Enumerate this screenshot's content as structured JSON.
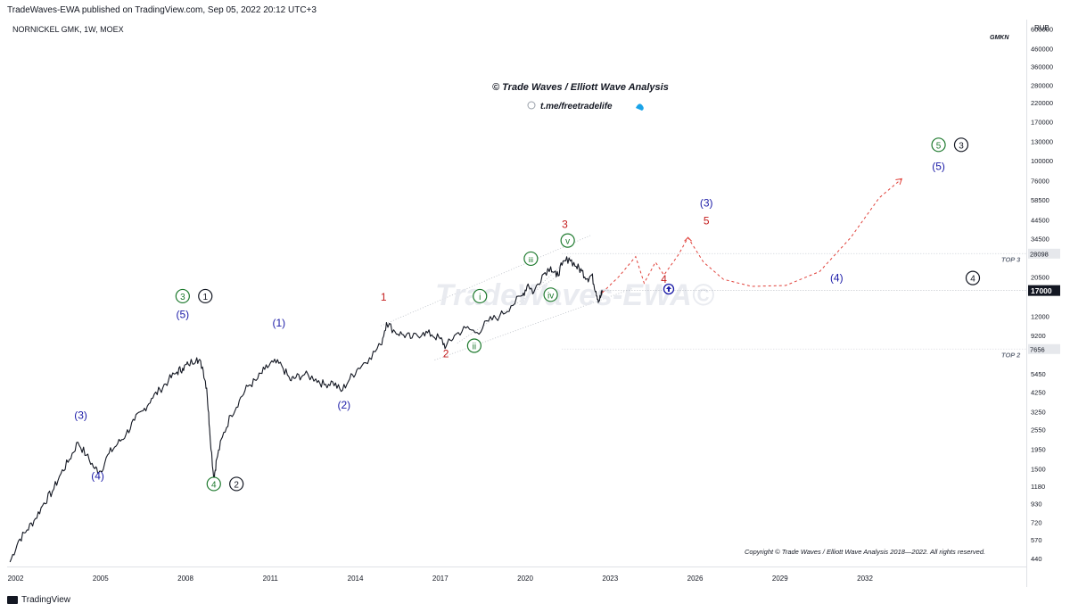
{
  "header": {
    "published_line": "TradeWaves-EWA published on TradingView.com, Sep 05, 2022 20:12 UTC+3",
    "symbol_line": "NORNICKEL GMK, 1W, MOEX",
    "currency": "RUB",
    "ticker_tag": "GMKN"
  },
  "branding": {
    "title": "© Trade Waves / Elliott Wave Analysis",
    "telegram": "t.me/freetradelife",
    "watermark": "TradeWaves-EWA©",
    "copyright": "Copyright © Trade Waves / Elliott Wave Analysis 2018—2022. All rights reserved.",
    "footer_logo": "TradingView"
  },
  "colors": {
    "price": "#131722",
    "wave_blue": "#1c1ca8",
    "wave_red": "#c41c1c",
    "wave_green": "#1e7a2e",
    "wave_black": "#131722",
    "channel": "#b8bcc4",
    "projection": "#e0413a"
  },
  "chart_data": {
    "type": "line",
    "scale": "log",
    "title": "NORNICKEL GMK, 1W, MOEX",
    "ylabel": "RUB",
    "xlabel": "",
    "x_ticks": [
      "2002",
      "2005",
      "2008",
      "2011",
      "2014",
      "2017",
      "2020",
      "2023",
      "2026",
      "2029",
      "2032"
    ],
    "y_ticks": [
      "600000",
      "460000",
      "360000",
      "280000",
      "220000",
      "170000",
      "130000",
      "100000",
      "76000",
      "58500",
      "44500",
      "34500",
      "28098",
      "20500",
      "17000",
      "12000",
      "9200",
      "7656",
      "5450",
      "4250",
      "3250",
      "2550",
      "1950",
      "1500",
      "1180",
      "930",
      "720",
      "570",
      "440"
    ],
    "ylim": [
      400,
      650000
    ],
    "xlim": [
      2001.7,
      2037.7
    ],
    "current_price": 17000,
    "levels": [
      {
        "name": "TOP 3",
        "value": 28098
      },
      {
        "name": "TOP 2",
        "value": 7656
      }
    ],
    "series": [
      {
        "name": "",
        "points": [
          [
            2001.8,
            420
          ],
          [
            2002.1,
            560
          ],
          [
            2002.4,
            650
          ],
          [
            2002.7,
            760
          ],
          [
            2003.0,
            940
          ],
          [
            2003.3,
            1100
          ],
          [
            2003.6,
            1400
          ],
          [
            2003.9,
            1700
          ],
          [
            2004.2,
            2150
          ],
          [
            2004.5,
            1800
          ],
          [
            2004.8,
            1500
          ],
          [
            2005.0,
            1450
          ],
          [
            2005.3,
            1850
          ],
          [
            2005.6,
            2100
          ],
          [
            2005.9,
            2400
          ],
          [
            2006.2,
            2900
          ],
          [
            2006.5,
            3300
          ],
          [
            2006.8,
            3900
          ],
          [
            2007.1,
            4400
          ],
          [
            2007.4,
            5000
          ],
          [
            2007.7,
            5600
          ],
          [
            2007.9,
            5900
          ],
          [
            2008.1,
            6200
          ],
          [
            2008.4,
            6800
          ],
          [
            2008.6,
            6000
          ],
          [
            2008.75,
            4500
          ],
          [
            2008.85,
            2600
          ],
          [
            2009.0,
            1300
          ],
          [
            2009.1,
            1700
          ],
          [
            2009.3,
            2300
          ],
          [
            2009.6,
            3100
          ],
          [
            2009.9,
            3800
          ],
          [
            2010.2,
            4600
          ],
          [
            2010.5,
            5000
          ],
          [
            2010.8,
            5800
          ],
          [
            2011.1,
            6400
          ],
          [
            2011.4,
            6100
          ],
          [
            2011.7,
            5000
          ],
          [
            2011.9,
            5200
          ],
          [
            2012.2,
            5400
          ],
          [
            2012.6,
            5100
          ],
          [
            2012.9,
            4700
          ],
          [
            2013.2,
            4900
          ],
          [
            2013.5,
            4300
          ],
          [
            2013.8,
            5100
          ],
          [
            2014.1,
            5900
          ],
          [
            2014.5,
            6800
          ],
          [
            2014.9,
            8100
          ],
          [
            2015.1,
            11000
          ],
          [
            2015.4,
            9700
          ],
          [
            2015.7,
            9300
          ],
          [
            2016.0,
            8900
          ],
          [
            2016.4,
            9600
          ],
          [
            2016.7,
            9300
          ],
          [
            2017.0,
            8800
          ],
          [
            2017.2,
            7900
          ],
          [
            2017.5,
            9200
          ],
          [
            2017.9,
            10200
          ],
          [
            2018.3,
            9600
          ],
          [
            2018.7,
            11200
          ],
          [
            2019.1,
            12000
          ],
          [
            2019.5,
            13800
          ],
          [
            2019.9,
            15900
          ],
          [
            2020.1,
            18600
          ],
          [
            2020.3,
            16500
          ],
          [
            2020.6,
            21000
          ],
          [
            2020.9,
            23500
          ],
          [
            2021.1,
            20500
          ],
          [
            2021.3,
            24000
          ],
          [
            2021.55,
            26500
          ],
          [
            2021.8,
            23600
          ],
          [
            2022.0,
            22200
          ],
          [
            2022.2,
            20000
          ],
          [
            2022.35,
            21000
          ],
          [
            2022.5,
            16800
          ],
          [
            2022.6,
            14800
          ],
          [
            2022.68,
            15800
          ],
          [
            2022.72,
            17000
          ]
        ]
      },
      {
        "name": "",
        "style": "projection",
        "points": [
          [
            2022.72,
            16500
          ],
          [
            2023.3,
            20500
          ],
          [
            2023.9,
            27000
          ],
          [
            2024.2,
            18800
          ],
          [
            2024.6,
            25000
          ],
          [
            2024.9,
            21000
          ],
          [
            2025.4,
            27500
          ],
          [
            2025.75,
            35000
          ],
          [
            2026.3,
            25000
          ],
          [
            2027.0,
            19800
          ],
          [
            2028.0,
            18000
          ],
          [
            2029.2,
            18200
          ],
          [
            2030.4,
            22000
          ],
          [
            2031.5,
            35000
          ],
          [
            2032.5,
            60000
          ],
          [
            2033.3,
            78000
          ]
        ]
      }
    ],
    "wave_labels": [
      {
        "text": "(3)",
        "x": 2004.3,
        "y": 2950,
        "color": "blue"
      },
      {
        "text": "(4)",
        "x": 2004.9,
        "y": 1290,
        "color": "blue"
      },
      {
        "text": "(5)",
        "x": 2007.9,
        "y": 11700,
        "color": "blue"
      },
      {
        "text": "3",
        "x": 2007.9,
        "y": 15000,
        "color": "green",
        "circle": true
      },
      {
        "text": "1",
        "x": 2008.7,
        "y": 15000,
        "color": "black",
        "circle": true
      },
      {
        "text": "4",
        "x": 2009.0,
        "y": 1160,
        "color": "green",
        "circle": true
      },
      {
        "text": "2",
        "x": 2009.8,
        "y": 1160,
        "color": "black",
        "circle": true
      },
      {
        "text": "(1)",
        "x": 2011.3,
        "y": 10400,
        "color": "blue"
      },
      {
        "text": "(2)",
        "x": 2013.6,
        "y": 3400,
        "color": "blue"
      },
      {
        "text": "1",
        "x": 2015.0,
        "y": 14800,
        "color": "red"
      },
      {
        "text": "2",
        "x": 2017.2,
        "y": 6850,
        "color": "red"
      },
      {
        "text": "i",
        "x": 2018.4,
        "y": 15000,
        "color": "green",
        "circle": true
      },
      {
        "text": "ii",
        "x": 2018.2,
        "y": 7630,
        "color": "green",
        "circle": true
      },
      {
        "text": "iii",
        "x": 2020.2,
        "y": 25000,
        "color": "green",
        "circle": true
      },
      {
        "text": "iv",
        "x": 2020.9,
        "y": 15300,
        "color": "green",
        "circle": true
      },
      {
        "text": "v",
        "x": 2021.5,
        "y": 32000,
        "color": "green",
        "circle": true
      },
      {
        "text": "3",
        "x": 2021.4,
        "y": 40000,
        "color": "red"
      },
      {
        "text": "4",
        "x": 2024.9,
        "y": 18900,
        "color": "red"
      },
      {
        "text": "(3)",
        "x": 2026.4,
        "y": 53500,
        "color": "blue"
      },
      {
        "text": "5",
        "x": 2026.4,
        "y": 42000,
        "color": "red"
      },
      {
        "text": "(4)",
        "x": 2031.0,
        "y": 19200,
        "color": "blue"
      },
      {
        "text": "4",
        "x": 2040.5,
        "y": 19200,
        "color": "black",
        "circle": true
      },
      {
        "text": "(5)",
        "x": 2034.6,
        "y": 88000,
        "color": "blue"
      },
      {
        "text": "5",
        "x": 2034.6,
        "y": 118000,
        "color": "green",
        "circle": true
      },
      {
        "text": "3",
        "x": 2035.4,
        "y": 118000,
        "color": "black",
        "circle": true
      }
    ]
  }
}
